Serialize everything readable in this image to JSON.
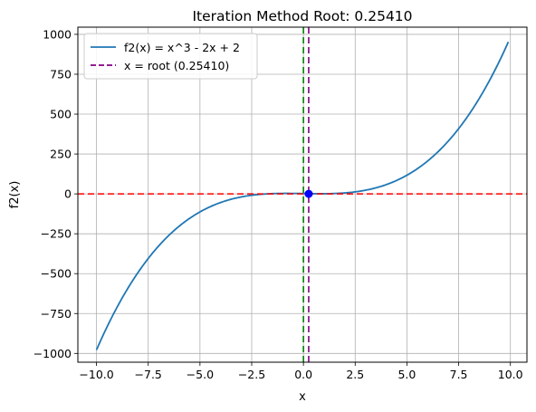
{
  "chart_data": {
    "type": "line",
    "title": "Iteration Method Root: 0.25410",
    "xlabel": "x",
    "ylabel": "f2(x)",
    "xlim": [
      -10.9,
      10.8
    ],
    "ylim": [
      -1055,
      1045
    ],
    "xticks": [
      -10.0,
      -7.5,
      -5.0,
      -2.5,
      0.0,
      2.5,
      5.0,
      7.5,
      10.0
    ],
    "xtick_labels": [
      "−10.0",
      "−7.5",
      "−5.0",
      "−2.5",
      "0.0",
      "2.5",
      "5.0",
      "7.5",
      "10.0"
    ],
    "yticks": [
      -1000,
      -750,
      -500,
      -250,
      0,
      250,
      500,
      750,
      1000
    ],
    "ytick_labels": [
      "−1000",
      "−750",
      "−500",
      "−250",
      "0",
      "250",
      "500",
      "750",
      "1000"
    ],
    "grid": true,
    "legend_position": "upper-left",
    "function": {
      "name": "f2(x) = x^3 - 2x + 2",
      "color": "#1f77b4",
      "x_range": [
        -10.0,
        9.9
      ],
      "sample_points": [
        {
          "x": -10.0,
          "y": -978
        },
        {
          "x": -7.5,
          "y": -405
        },
        {
          "x": -5.0,
          "y": -113
        },
        {
          "x": -2.5,
          "y": -8.6
        },
        {
          "x": 0.0,
          "y": 2
        },
        {
          "x": 2.5,
          "y": 12.6
        },
        {
          "x": 5.0,
          "y": 117
        },
        {
          "x": 7.5,
          "y": 409
        },
        {
          "x": 9.9,
          "y": 952
        }
      ]
    },
    "vertical_lines": [
      {
        "name": "x = root (0.25410)",
        "x": 0.2541,
        "color": "#800080",
        "style": "dashed",
        "in_legend": true
      },
      {
        "x": 0.0,
        "color": "#008000",
        "style": "dashed",
        "in_legend": false
      }
    ],
    "horizontal_lines": [
      {
        "y": 0,
        "color": "#ff0000",
        "style": "dashed"
      }
    ],
    "root_marker": {
      "x": 0.2541,
      "y": 0,
      "color": "#0000ff"
    }
  }
}
